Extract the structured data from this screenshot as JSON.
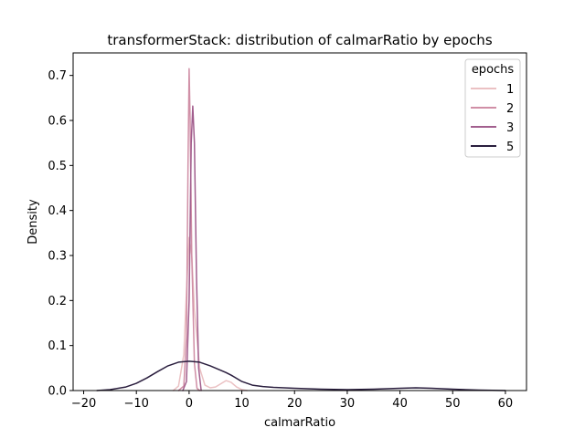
{
  "chart_data": {
    "type": "line",
    "title": "transformerStack: distribution of calmarRatio by epochs",
    "xlabel": "calmarRatio",
    "ylabel": "Density",
    "xlim": [
      -22,
      64
    ],
    "ylim": [
      0,
      0.75
    ],
    "xticks": [
      "−20",
      "−10",
      "0",
      "10",
      "20",
      "30",
      "40",
      "50",
      "60"
    ],
    "xtick_values": [
      -20,
      -10,
      0,
      10,
      20,
      30,
      40,
      50,
      60
    ],
    "yticks": [
      "0.0",
      "0.1",
      "0.2",
      "0.3",
      "0.4",
      "0.5",
      "0.6",
      "0.7"
    ],
    "ytick_values": [
      0.0,
      0.1,
      0.2,
      0.3,
      0.4,
      0.5,
      0.6,
      0.7
    ],
    "grid": false,
    "legend": {
      "title": "epochs",
      "placement": "top-right"
    },
    "series": [
      {
        "name": "1",
        "color": "#ebc1c3",
        "points": [
          [
            -3,
            0
          ],
          [
            -2,
            0.01
          ],
          [
            -1,
            0.08
          ],
          [
            -0.5,
            0.22
          ],
          [
            0,
            0.34
          ],
          [
            0.5,
            0.3
          ],
          [
            1,
            0.18
          ],
          [
            2,
            0.05
          ],
          [
            3,
            0.012
          ],
          [
            4,
            0.006
          ],
          [
            5,
            0.008
          ],
          [
            6,
            0.015
          ],
          [
            7,
            0.022
          ],
          [
            8,
            0.018
          ],
          [
            9,
            0.008
          ],
          [
            10,
            0.002
          ],
          [
            11,
            0
          ]
        ]
      },
      {
        "name": "2",
        "color": "#d08fa6",
        "points": [
          [
            -2,
            0
          ],
          [
            -1,
            0.01
          ],
          [
            -0.5,
            0.12
          ],
          [
            -0.2,
            0.5
          ],
          [
            0,
            0.715
          ],
          [
            0.2,
            0.6
          ],
          [
            0.5,
            0.3
          ],
          [
            1,
            0.06
          ],
          [
            1.5,
            0.005
          ],
          [
            2,
            0
          ]
        ]
      },
      {
        "name": "3",
        "color": "#a25f8e",
        "points": [
          [
            -1.2,
            0
          ],
          [
            -0.5,
            0.02
          ],
          [
            0,
            0.2
          ],
          [
            0.4,
            0.55
          ],
          [
            0.7,
            0.632
          ],
          [
            1,
            0.55
          ],
          [
            1.4,
            0.25
          ],
          [
            1.8,
            0.05
          ],
          [
            2.3,
            0
          ]
        ]
      },
      {
        "name": "5",
        "color": "#2a1e3e",
        "points": [
          [
            -17.5,
            0
          ],
          [
            -15,
            0.002
          ],
          [
            -12,
            0.008
          ],
          [
            -10,
            0.016
          ],
          [
            -8,
            0.028
          ],
          [
            -6,
            0.042
          ],
          [
            -4,
            0.055
          ],
          [
            -2,
            0.063
          ],
          [
            0,
            0.065
          ],
          [
            2,
            0.063
          ],
          [
            4,
            0.055
          ],
          [
            6,
            0.045
          ],
          [
            7,
            0.04
          ],
          [
            8,
            0.034
          ],
          [
            10,
            0.02
          ],
          [
            12,
            0.012
          ],
          [
            14,
            0.009
          ],
          [
            16,
            0.007
          ],
          [
            20,
            0.005
          ],
          [
            25,
            0.003
          ],
          [
            30,
            0.002
          ],
          [
            35,
            0.003
          ],
          [
            40,
            0.005
          ],
          [
            43,
            0.006
          ],
          [
            46,
            0.005
          ],
          [
            50,
            0.003
          ],
          [
            55,
            0.001
          ],
          [
            60,
            0
          ]
        ]
      }
    ]
  }
}
